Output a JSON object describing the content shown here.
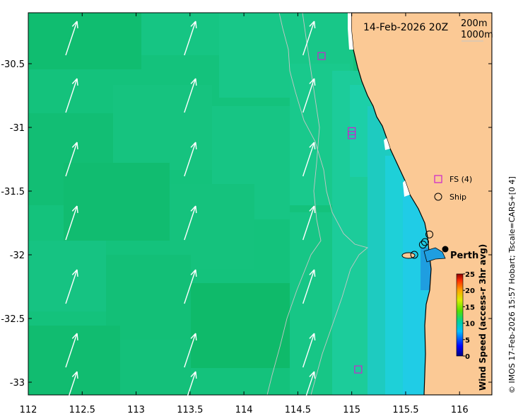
{
  "title": "14-Feb-2026 20Z",
  "isobath_legend": [
    "200m",
    "1000m"
  ],
  "city_label": "Perth",
  "legend": {
    "fs_label": "FS (4)",
    "ship_label": "Ship"
  },
  "colorbar": {
    "label": "Wind Speed (access-r 3hr avg)",
    "ticks": [
      "25",
      "20",
      "15",
      "10",
      "5",
      "0"
    ]
  },
  "credit": "© IMOS 17-Feb-2026 15:57 Hobart; Tscale=CARS+[0 4]",
  "axes": {
    "x_ticks": [
      "112",
      "112.5",
      "113",
      "113.5",
      "114",
      "114.5",
      "115",
      "115.5",
      "116"
    ],
    "y_ticks": [
      "-30.5",
      "-31",
      "-31.5",
      "-32",
      "-32.5",
      "-33"
    ]
  },
  "colors": {
    "land": "#fbc995",
    "wind_field": "#14c27c",
    "near_shore": "#1ec8c8",
    "coastal": "#1fd0e6",
    "fs_marker": "#cc22cc",
    "arrow": "#ffffff"
  },
  "chart_data": {
    "type": "heatmap",
    "xlabel": "",
    "ylabel": "",
    "xlim": [
      112,
      116.3
    ],
    "ylim": [
      -33.1,
      -30.1
    ],
    "x_ticks": [
      112,
      112.5,
      113,
      113.5,
      114,
      114.5,
      115,
      115.5,
      116
    ],
    "y_ticks": [
      -30.5,
      -31,
      -31.5,
      -32,
      -32.5,
      -33
    ],
    "colorbar_range": [
      0,
      25
    ],
    "colorbar_ticks": [
      0,
      5,
      10,
      15,
      20,
      25
    ],
    "wind_arrows": [
      {
        "lon": 112.4,
        "lat": -30.3
      },
      {
        "lon": 113.5,
        "lat": -30.3
      },
      {
        "lon": 114.6,
        "lat": -30.3
      },
      {
        "lon": 112.4,
        "lat": -30.75
      },
      {
        "lon": 113.5,
        "lat": -30.75
      },
      {
        "lon": 114.6,
        "lat": -30.75
      },
      {
        "lon": 112.4,
        "lat": -31.25
      },
      {
        "lon": 113.5,
        "lat": -31.25
      },
      {
        "lon": 114.6,
        "lat": -31.25
      },
      {
        "lon": 112.4,
        "lat": -31.75
      },
      {
        "lon": 113.5,
        "lat": -31.75
      },
      {
        "lon": 114.6,
        "lat": -31.75
      },
      {
        "lon": 112.4,
        "lat": -32.25
      },
      {
        "lon": 113.5,
        "lat": -32.25
      },
      {
        "lon": 114.6,
        "lat": -32.25
      },
      {
        "lon": 112.4,
        "lat": -32.75
      },
      {
        "lon": 113.5,
        "lat": -32.75
      },
      {
        "lon": 114.6,
        "lat": -32.75
      },
      {
        "lon": 112.4,
        "lat": -33.05
      },
      {
        "lon": 113.5,
        "lat": -33.05
      },
      {
        "lon": 114.6,
        "lat": -33.05
      }
    ],
    "fs_points": [
      {
        "lon": 114.72,
        "lat": -30.44
      },
      {
        "lon": 115.0,
        "lat": -31.03
      },
      {
        "lon": 115.0,
        "lat": -31.06
      },
      {
        "lon": 115.06,
        "lat": -32.9
      }
    ],
    "ship_points": [
      {
        "lon": 115.58,
        "lat": -32.0
      },
      {
        "lon": 115.66,
        "lat": -31.92
      },
      {
        "lon": 115.68,
        "lat": -31.9
      },
      {
        "lon": 115.72,
        "lat": -31.84
      }
    ],
    "city": {
      "lon": 115.86,
      "lat": -31.95
    }
  }
}
